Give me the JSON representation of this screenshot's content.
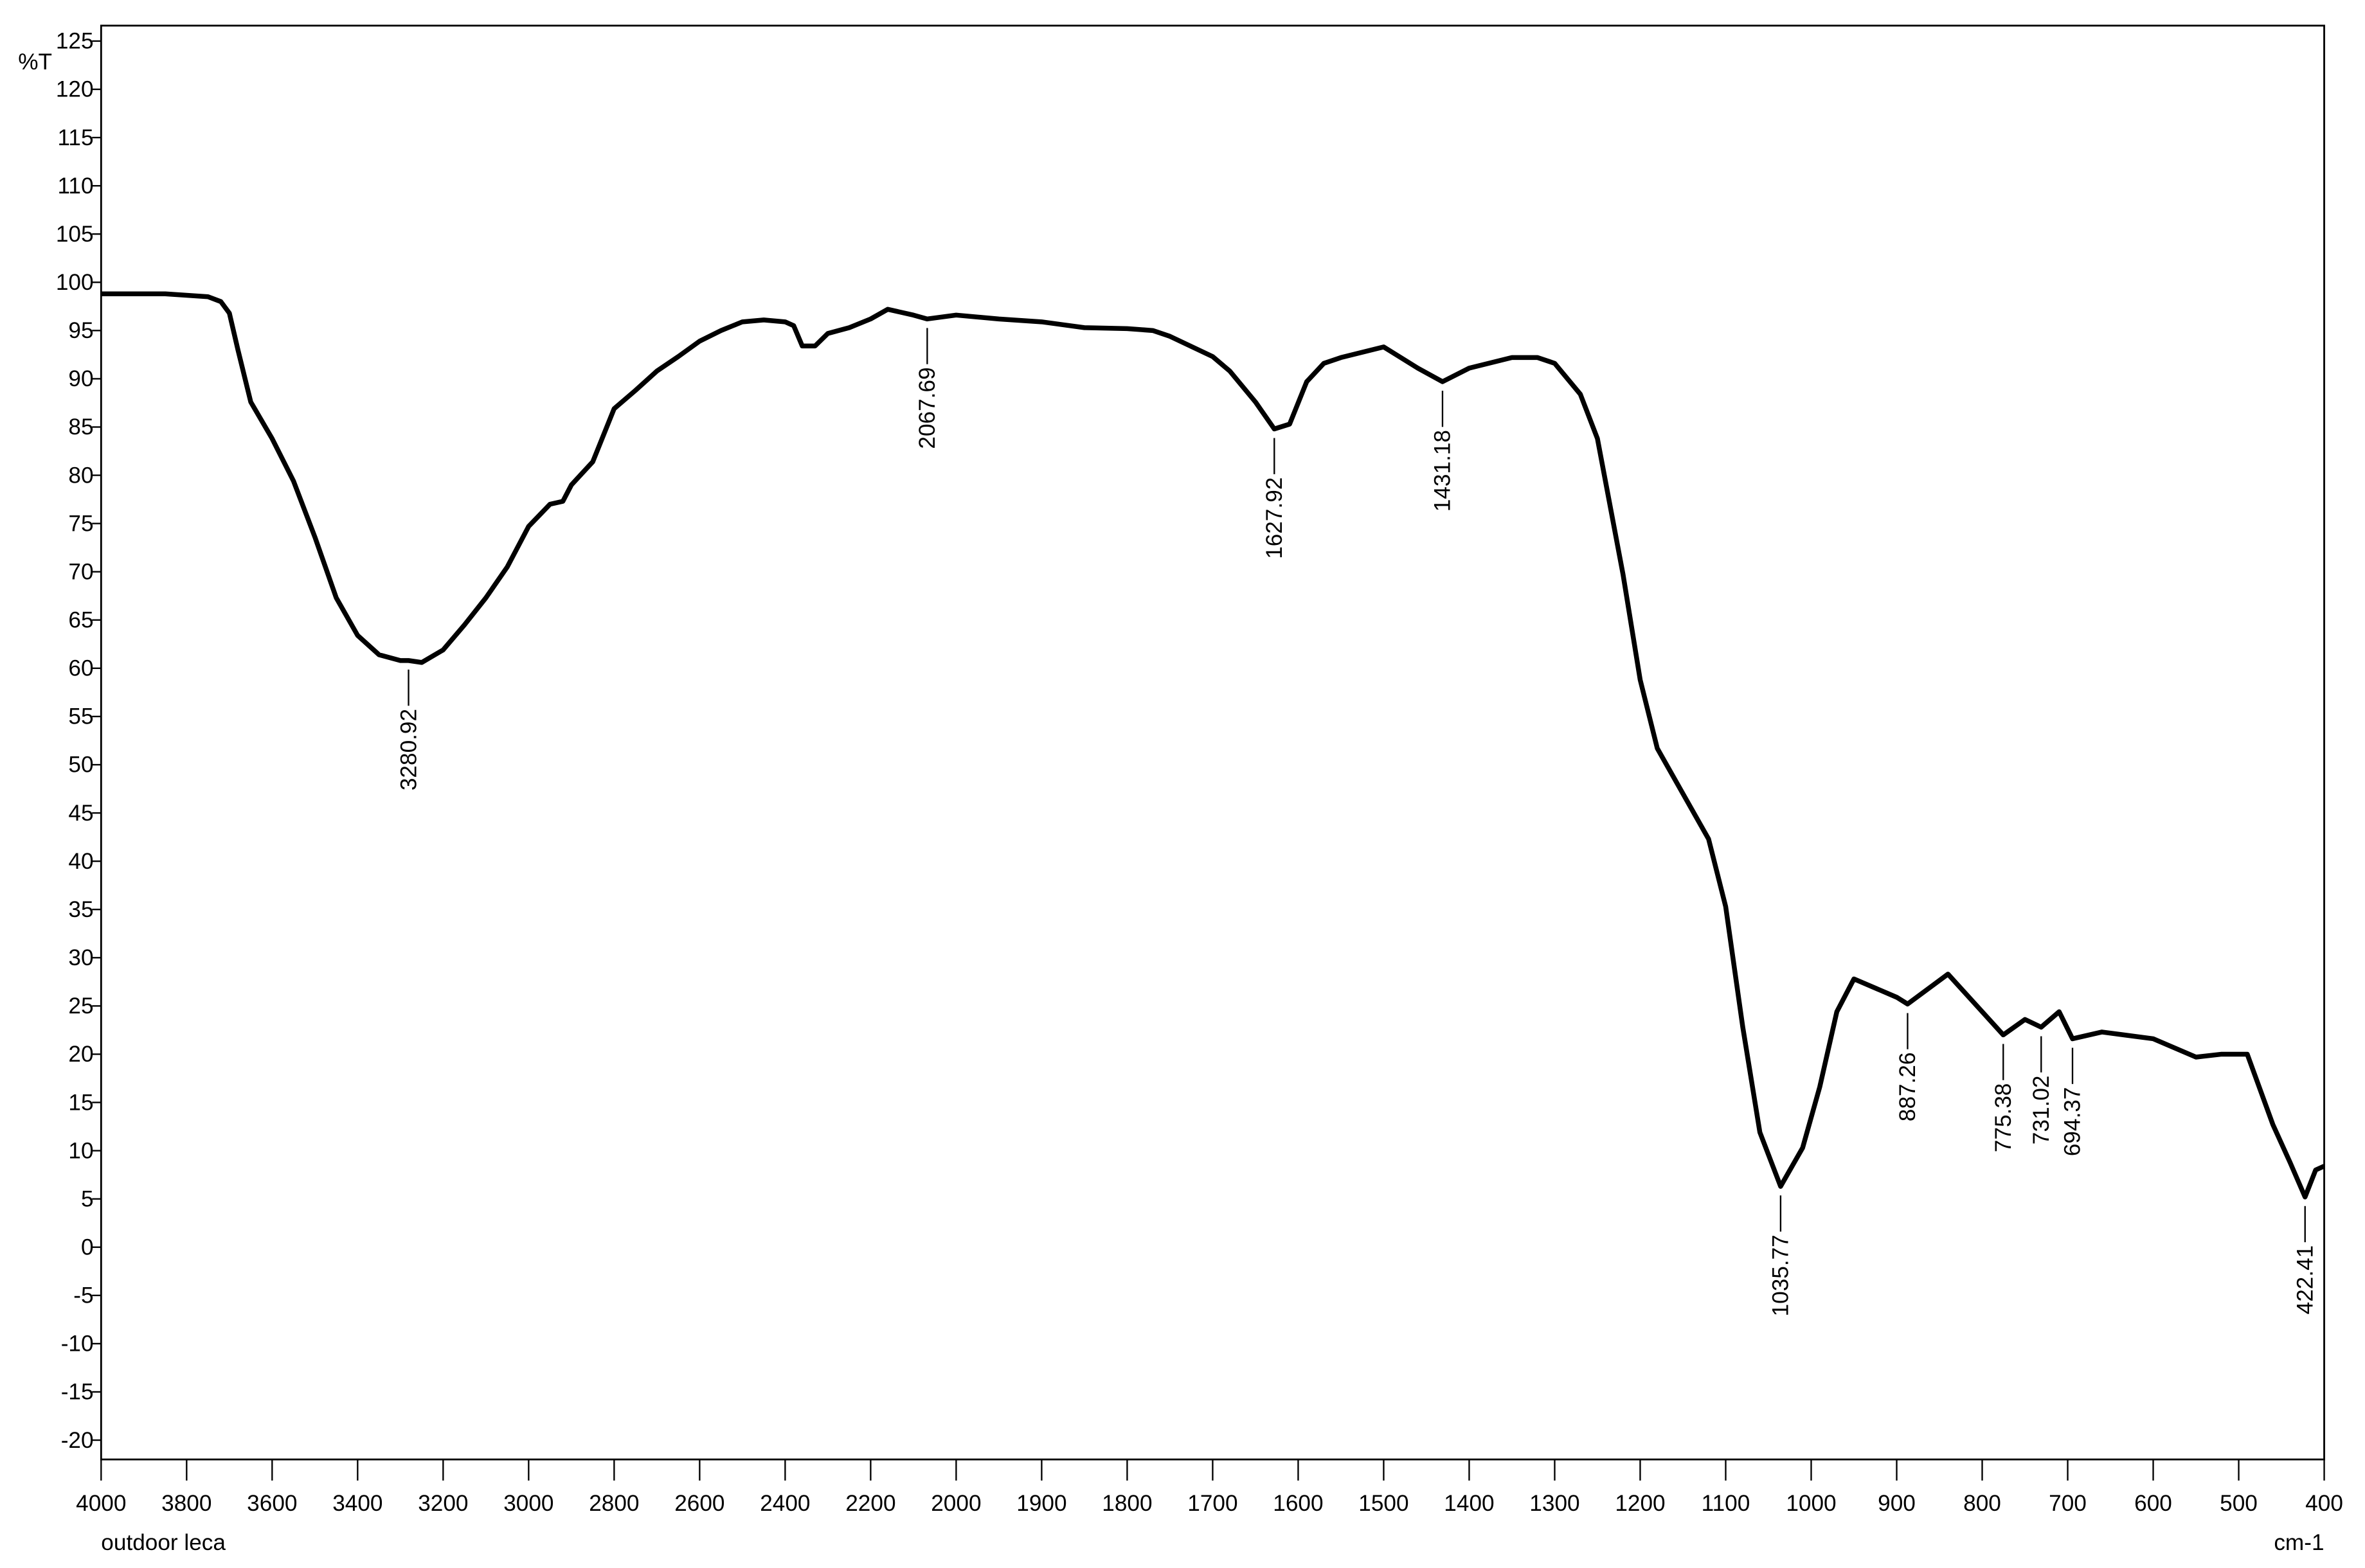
{
  "chart_data": {
    "type": "line",
    "title": "outdoor leca",
    "xlabel": "cm-1",
    "ylabel": "%T",
    "xlim": [
      4000,
      400
    ],
    "ylim": [
      -22,
      126.6
    ],
    "xticks": [
      4000,
      3800,
      3600,
      3400,
      3200,
      3000,
      2800,
      2600,
      2400,
      2200,
      2000,
      1900,
      1800,
      1700,
      1600,
      1500,
      1400,
      1300,
      1200,
      1100,
      1000,
      900,
      800,
      700,
      600,
      500,
      400
    ],
    "yticks": [
      -20,
      -15,
      -10,
      -5,
      0,
      5,
      10,
      15,
      20,
      25,
      30,
      35,
      40,
      45,
      50,
      55,
      60,
      65,
      70,
      75,
      80,
      85,
      90,
      95,
      100,
      105,
      110,
      115,
      120,
      125
    ],
    "series": [
      {
        "color": "#000000",
        "x": [
          4000,
          3850,
          3750,
          3720,
          3700,
          3680,
          3650,
          3600,
          3550,
          3500,
          3450,
          3400,
          3350,
          3300,
          3280.92,
          3250,
          3200,
          3150,
          3100,
          3050,
          3000,
          2950,
          2920,
          2900,
          2850,
          2800,
          2750,
          2700,
          2650,
          2600,
          2550,
          2500,
          2450,
          2400,
          2380,
          2360,
          2330,
          2300,
          2250,
          2200,
          2160,
          2100,
          2067.69,
          2000,
          1950,
          1900,
          1850,
          1800,
          1770,
          1750,
          1700,
          1680,
          1650,
          1627.92,
          1610,
          1590,
          1570,
          1550,
          1500,
          1460,
          1431.18,
          1400,
          1350,
          1320,
          1300,
          1270,
          1250,
          1220,
          1200,
          1180,
          1150,
          1120,
          1100,
          1080,
          1060,
          1035.77,
          1010,
          990,
          970,
          950,
          900,
          887.26,
          840,
          800,
          775.38,
          750,
          731.02,
          710,
          694.37,
          660,
          600,
          550,
          520,
          490,
          460,
          440,
          422.41,
          410,
          400
        ],
        "values": [
          98.8,
          98.8,
          98.5,
          98,
          96.8,
          93,
          87.6,
          83.8,
          79.4,
          73.6,
          67.3,
          63.4,
          61.4,
          60.8,
          60.8,
          60.6,
          61.9,
          64.5,
          67.3,
          70.5,
          74.7,
          77,
          77.3,
          79,
          81.4,
          86.9,
          88.8,
          90.8,
          92.3,
          93.9,
          95,
          95.9,
          96.1,
          95.9,
          95.5,
          93.4,
          93.4,
          94.7,
          95.3,
          96.2,
          97.2,
          96.6,
          96.2,
          96.6,
          96.2,
          95.9,
          95.3,
          95.2,
          95,
          94.4,
          92.3,
          90.8,
          87.6,
          84.8,
          85.3,
          89.7,
          91.6,
          92.2,
          93.3,
          91.1,
          89.7,
          91.1,
          92.2,
          92.2,
          91.6,
          88.4,
          83.8,
          69.7,
          58.8,
          51.7,
          47,
          42.3,
          35.3,
          22.8,
          11.9,
          6.3,
          10.3,
          16.6,
          24.4,
          27.8,
          25.9,
          25.2,
          28.3,
          24.4,
          22,
          23.6,
          22.8,
          24.4,
          21.6,
          22.3,
          21.6,
          19.7,
          20,
          20,
          12.7,
          8.8,
          5.2,
          8,
          8.4
        ]
      }
    ],
    "peaks": [
      3280.92,
      2067.69,
      1627.92,
      1431.18,
      1035.77,
      887.26,
      775.38,
      731.02,
      694.37,
      422.41
    ]
  }
}
